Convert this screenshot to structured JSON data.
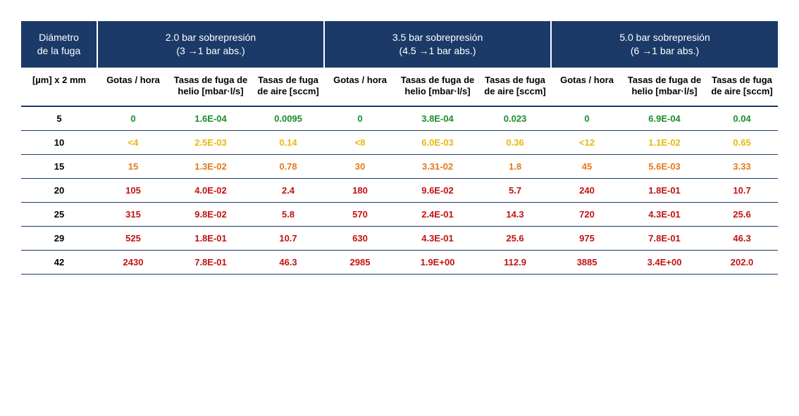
{
  "colors": {
    "header_bg": "#1b3a68",
    "header_text": "#ffffff",
    "rule": "#1b3a68",
    "body_text": "#000000",
    "green": "#1a8f2b",
    "yellow": "#e7b90e",
    "orange": "#e6791c",
    "red": "#c41212",
    "background": "#ffffff"
  },
  "header": {
    "diam_line1": "Diámetro",
    "diam_line2": "de la fuga",
    "groups": [
      {
        "line1": "2.0 bar sobrepresión",
        "line2": "(3 →1 bar abs.)"
      },
      {
        "line1": "3.5 bar sobrepresión",
        "line2": "(4.5 →1 bar abs.)"
      },
      {
        "line1": "5.0 bar sobrepresión",
        "line2": "(6 →1 bar abs.)"
      }
    ],
    "sub": {
      "diam": "[µm] x 2 mm",
      "drops": "Gotas / hora",
      "helium": "Tasas de fuga de helio [mbar·l/s]",
      "air": "Tasas de fuga de aire [sccm]"
    }
  },
  "rows": [
    {
      "diam": "5",
      "color": "green",
      "g": [
        {
          "drops": "0",
          "he": "1.6E-04",
          "air": "0.0095"
        },
        {
          "drops": "0",
          "he": "3.8E-04",
          "air": "0.023"
        },
        {
          "drops": "0",
          "he": "6.9E-04",
          "air": "0.04"
        }
      ]
    },
    {
      "diam": "10",
      "color": "yellow",
      "g": [
        {
          "drops": "<4",
          "he": "2.5E-03",
          "air": "0.14"
        },
        {
          "drops": "<8",
          "he": "6.0E-03",
          "air": "0.36"
        },
        {
          "drops": "<12",
          "he": "1.1E-02",
          "air": "0.65"
        }
      ]
    },
    {
      "diam": "15",
      "color": "orange",
      "g": [
        {
          "drops": "15",
          "he": "1.3E-02",
          "air": "0.78"
        },
        {
          "drops": "30",
          "he": "3.31-02",
          "air": "1.8"
        },
        {
          "drops": "45",
          "he": "5.6E-03",
          "air": "3.33"
        }
      ]
    },
    {
      "diam": "20",
      "color": "red",
      "g": [
        {
          "drops": "105",
          "he": "4.0E-02",
          "air": "2.4"
        },
        {
          "drops": "180",
          "he": "9.6E-02",
          "air": "5.7"
        },
        {
          "drops": "240",
          "he": "1.8E-01",
          "air": "10.7"
        }
      ]
    },
    {
      "diam": "25",
      "color": "red",
      "g": [
        {
          "drops": "315",
          "he": "9.8E-02",
          "air": "5.8"
        },
        {
          "drops": "570",
          "he": "2.4E-01",
          "air": "14.3"
        },
        {
          "drops": "720",
          "he": "4.3E-01",
          "air": "25.6"
        }
      ]
    },
    {
      "diam": "29",
      "color": "red",
      "g": [
        {
          "drops": "525",
          "he": "1.8E-01",
          "air": "10.7"
        },
        {
          "drops": "630",
          "he": "4.3E-01",
          "air": "25.6"
        },
        {
          "drops": "975",
          "he": "7.8E-01",
          "air": "46.3"
        }
      ]
    },
    {
      "diam": "42",
      "color": "red",
      "g": [
        {
          "drops": "2430",
          "he": "7.8E-01",
          "air": "46.3"
        },
        {
          "drops": "2985",
          "he": "1.9E+00",
          "air": "112.9"
        },
        {
          "drops": "3885",
          "he": "3.4E+00",
          "air": "202.0"
        }
      ]
    }
  ]
}
